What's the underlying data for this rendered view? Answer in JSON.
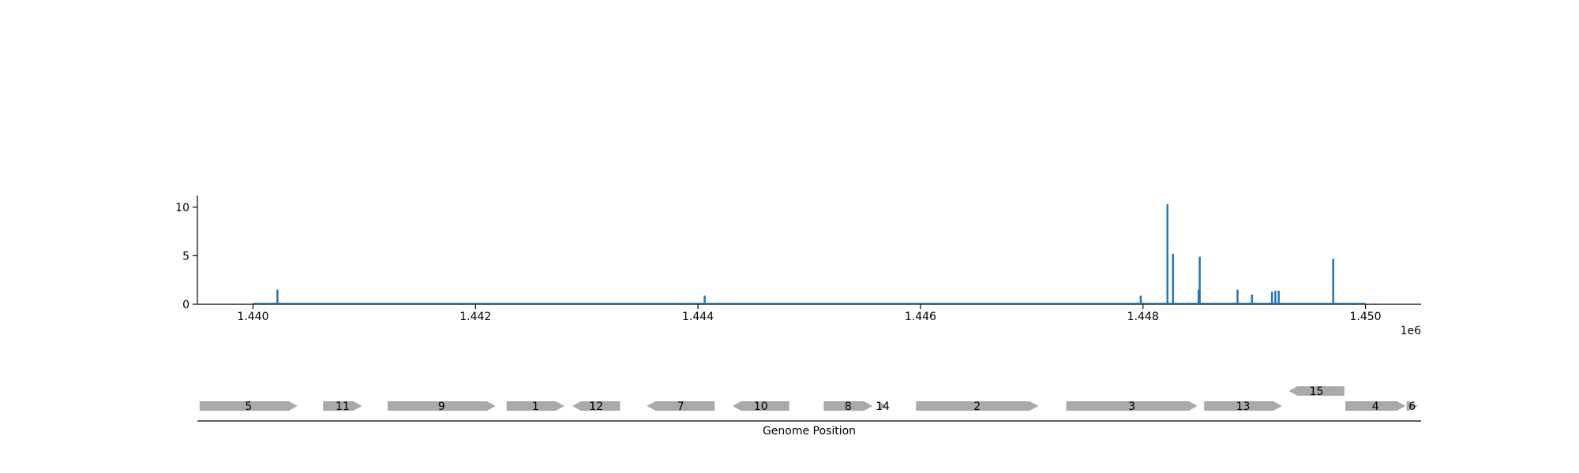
{
  "chart_data": [
    {
      "type": "bar",
      "title": "",
      "xlabel": "",
      "ylabel": "",
      "offset_label": "1e6",
      "xlim": [
        1439500,
        1450500
      ],
      "ylim": [
        0,
        11.2
      ],
      "xticks": [
        {
          "value": 1440000,
          "label": "1.440"
        },
        {
          "value": 1442000,
          "label": "1.442"
        },
        {
          "value": 1444000,
          "label": "1.444"
        },
        {
          "value": 1446000,
          "label": "1.446"
        },
        {
          "value": 1448000,
          "label": "1.448"
        },
        {
          "value": 1450000,
          "label": "1.450"
        }
      ],
      "yticks": [
        {
          "value": 0,
          "label": "0"
        },
        {
          "value": 5,
          "label": "5"
        },
        {
          "value": 10,
          "label": "10"
        }
      ],
      "baseline": {
        "x_start": 1440000,
        "x_end": 1450000
      },
      "color": "#1f77b4",
      "points": [
        {
          "x": 1440220,
          "y": 1.5
        },
        {
          "x": 1444060,
          "y": 0.9
        },
        {
          "x": 1447980,
          "y": 0.9
        },
        {
          "x": 1448220,
          "y": 10.3
        },
        {
          "x": 1448270,
          "y": 5.2
        },
        {
          "x": 1448500,
          "y": 1.5
        },
        {
          "x": 1448510,
          "y": 4.9
        },
        {
          "x": 1448850,
          "y": 1.5
        },
        {
          "x": 1448980,
          "y": 1.0
        },
        {
          "x": 1449160,
          "y": 1.3
        },
        {
          "x": 1449190,
          "y": 1.4
        },
        {
          "x": 1449220,
          "y": 1.4
        },
        {
          "x": 1449710,
          "y": 4.7
        }
      ]
    },
    {
      "type": "gene-track",
      "xlabel": "Genome Position",
      "xlim": [
        1439500,
        1450500
      ],
      "color": "#a9a9a9",
      "genes": [
        {
          "label": "5",
          "start": 1439520,
          "end": 1440400,
          "strand": "+",
          "row": 0
        },
        {
          "label": "11",
          "start": 1440630,
          "end": 1440980,
          "strand": "+",
          "row": 0
        },
        {
          "label": "9",
          "start": 1441210,
          "end": 1442180,
          "strand": "+",
          "row": 0
        },
        {
          "label": "1",
          "start": 1442280,
          "end": 1442800,
          "strand": "+",
          "row": 0
        },
        {
          "label": "12",
          "start": 1442870,
          "end": 1443300,
          "strand": "-",
          "row": 0
        },
        {
          "label": "7",
          "start": 1443540,
          "end": 1444150,
          "strand": "-",
          "row": 0
        },
        {
          "label": "10",
          "start": 1444310,
          "end": 1444820,
          "strand": "-",
          "row": 0
        },
        {
          "label": "8",
          "start": 1445130,
          "end": 1445570,
          "strand": "+",
          "row": 0
        },
        {
          "label": "14",
          "start": 1445630,
          "end": 1445690,
          "strand": "+",
          "row": 0
        },
        {
          "label": "2",
          "start": 1445960,
          "end": 1447060,
          "strand": "+",
          "row": 0
        },
        {
          "label": "3",
          "start": 1447310,
          "end": 1448490,
          "strand": "+",
          "row": 0
        },
        {
          "label": "13",
          "start": 1448550,
          "end": 1449250,
          "strand": "+",
          "row": 0
        },
        {
          "label": "15",
          "start": 1449310,
          "end": 1449810,
          "strand": "-",
          "row": 1
        },
        {
          "label": "4",
          "start": 1449820,
          "end": 1450360,
          "strand": "+",
          "row": 0
        },
        {
          "label": "6",
          "start": 1450370,
          "end": 1450470,
          "strand": "+",
          "row": 0
        }
      ]
    }
  ]
}
